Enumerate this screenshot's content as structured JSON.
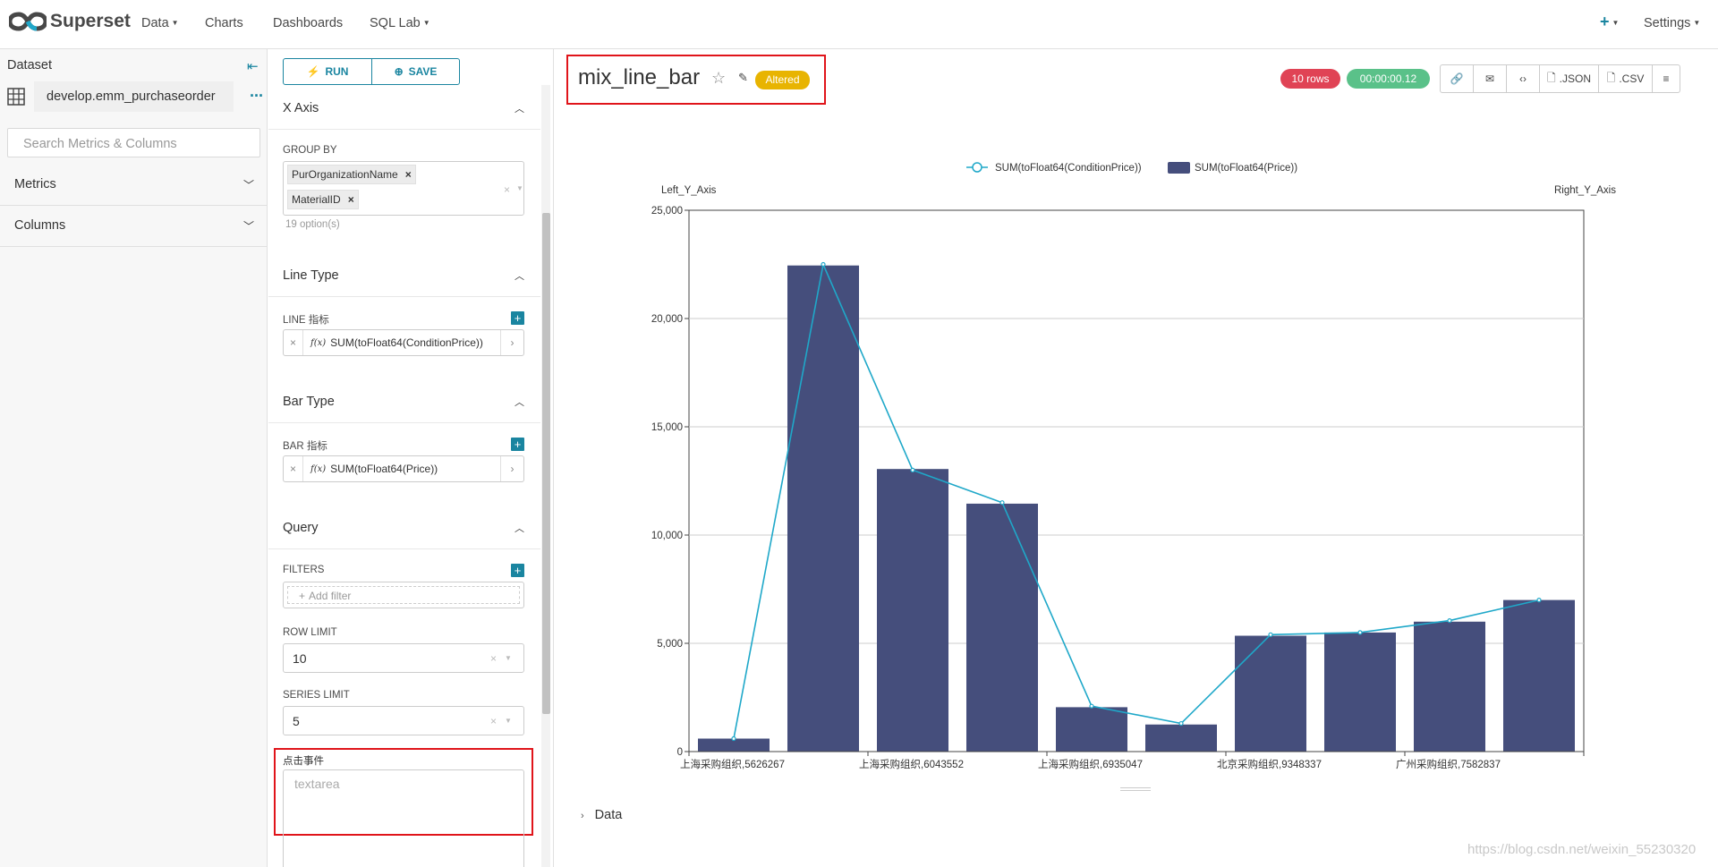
{
  "navbar": {
    "brand": "Superset",
    "items": [
      "Data",
      "Charts",
      "Dashboards",
      "SQL Lab"
    ],
    "settings": "Settings"
  },
  "datasource_panel": {
    "title": "Dataset",
    "dataset_name": "develop.emm_purchaseorder",
    "search_placeholder": "Search Metrics & Columns",
    "sections": [
      "Metrics",
      "Columns"
    ]
  },
  "controls": {
    "run_label": "RUN",
    "save_label": "SAVE",
    "x_axis": {
      "title": "X Axis",
      "group_by_label": "GROUP BY",
      "tags": [
        "PurOrganizationName",
        "MaterialID"
      ],
      "option_count": "19 option(s)"
    },
    "line_type": {
      "title": "Line Type",
      "label": "LINE 指标",
      "metric": "SUM(toFloat64(ConditionPrice))"
    },
    "bar_type": {
      "title": "Bar Type",
      "label": "BAR 指标",
      "metric": "SUM(toFloat64(Price))"
    },
    "query": {
      "title": "Query",
      "filters_label": "FILTERS",
      "add_filter": "Add filter",
      "row_limit_label": "ROW LIMIT",
      "row_limit": "10",
      "series_limit_label": "SERIES LIMIT",
      "series_limit": "5",
      "click_event_label": "点击事件",
      "click_event_placeholder": "textarea"
    }
  },
  "chart_header": {
    "title": "mix_line_bar",
    "status_badge": "Altered",
    "rows": "10 rows",
    "timer": "00:00:00.12",
    "actions": [
      ".JSON",
      ".CSV"
    ]
  },
  "data_section": "Data",
  "watermark": "https://blog.csdn.net/weixin_55230320",
  "chart_data": {
    "type": "bar",
    "left_axis_label": "Left_Y_Axis",
    "right_axis_label": "Right_Y_Axis",
    "ylim": [
      0,
      25000
    ],
    "yticks": [
      0,
      5000,
      10000,
      15000,
      20000,
      25000
    ],
    "ytick_labels": [
      "0",
      "5,000",
      "10,000",
      "15,000",
      "20,000",
      "25,000"
    ],
    "grid": true,
    "legend_position": "top-center",
    "x_tick_labels": [
      "上海采购组织,5626267",
      "上海采购组织,6043552",
      "上海采购组织,6935047",
      "北京采购组织,9348337",
      "广州采购组织,7582837"
    ],
    "x_tick_label_positions": [
      0,
      2,
      4,
      6,
      8
    ],
    "series": [
      {
        "name": "SUM(toFloat64(ConditionPrice))",
        "kind": "line",
        "color": "#1fa8c9",
        "values": [
          600,
          22500,
          13000,
          11500,
          2100,
          1300,
          5400,
          5500,
          6050,
          7000
        ]
      },
      {
        "name": "SUM(toFloat64(Price))",
        "kind": "bar",
        "color": "#454e7c",
        "values": [
          600,
          22450,
          13050,
          11450,
          2050,
          1250,
          5350,
          5500,
          6000,
          7000
        ]
      }
    ]
  }
}
